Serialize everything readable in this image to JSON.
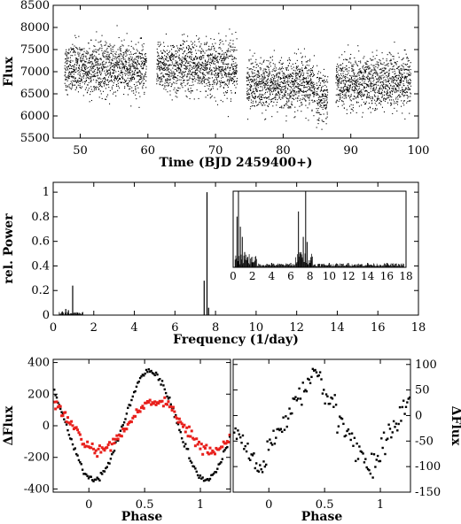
{
  "chart_data": [
    {
      "id": "lightcurve",
      "type": "scatter",
      "xlabel": "Time (BJD 2459400+)",
      "ylabel": "Flux",
      "xlim": [
        46,
        100
      ],
      "ylim": [
        5500,
        8500
      ],
      "xticks": [
        50,
        60,
        70,
        80,
        90,
        100
      ],
      "yticks": [
        5500,
        6000,
        6500,
        7000,
        7500,
        8000,
        8500
      ],
      "segments": [
        {
          "start": 47.7,
          "end": 58.8,
          "mean": 7080,
          "spread": 390
        },
        {
          "start": 58.8,
          "end": 59.8,
          "mean": 7080,
          "spread": 350
        },
        {
          "start": 61.3,
          "end": 73.2,
          "mean": 7100,
          "spread": 420
        },
        {
          "start": 74.6,
          "end": 84.7,
          "mean": 6700,
          "spread": 390
        },
        {
          "start": 84.9,
          "end": 86.6,
          "mean": 6450,
          "spread": 380
        },
        {
          "start": 87.8,
          "end": 98.9,
          "mean": 6760,
          "spread": 400
        }
      ],
      "grid": false
    },
    {
      "id": "periodogram",
      "type": "line",
      "xlabel": "Frequency (1/day)",
      "ylabel": "rel. Power",
      "xlim": [
        0,
        18
      ],
      "ylim": [
        0,
        1.08
      ],
      "xticks": [
        0,
        2,
        4,
        6,
        8,
        10,
        12,
        14,
        16,
        18
      ],
      "yticks": [
        0,
        0.2,
        0.4,
        0.6,
        0.8,
        1
      ],
      "peaks": [
        {
          "f": 0.45,
          "p": 0.03
        },
        {
          "f": 0.62,
          "p": 0.05
        },
        {
          "f": 0.75,
          "p": 0.04
        },
        {
          "f": 0.96,
          "p": 0.24
        },
        {
          "f": 1.2,
          "p": 0.02
        },
        {
          "f": 7.44,
          "p": 0.28
        },
        {
          "f": 7.58,
          "p": 1.0
        },
        {
          "f": 7.66,
          "p": 0.06
        }
      ],
      "inset": {
        "xlim": [
          0,
          18
        ],
        "ylim": [
          0,
          0.03
        ],
        "xticks": [
          0,
          2,
          4,
          6,
          8,
          10,
          12,
          14,
          16,
          18
        ],
        "peaks": [
          {
            "f": 0.4,
            "p": 0.02
          },
          {
            "f": 0.55,
            "p": 0.03
          },
          {
            "f": 0.75,
            "p": 0.016
          },
          {
            "f": 0.95,
            "p": 0.012
          },
          {
            "f": 1.2,
            "p": 0.006
          },
          {
            "f": 1.5,
            "p": 0.004
          },
          {
            "f": 2.1,
            "p": 0.002
          },
          {
            "f": 6.8,
            "p": 0.022
          },
          {
            "f": 7.05,
            "p": 0.006
          },
          {
            "f": 7.3,
            "p": 0.012
          },
          {
            "f": 7.55,
            "p": 0.03
          },
          {
            "f": 7.7,
            "p": 0.01
          },
          {
            "f": 8.1,
            "p": 0.004
          }
        ]
      },
      "grid": false
    },
    {
      "id": "phase-left",
      "type": "scatter",
      "xlabel": "Phase",
      "ylabel": "ΔFlux",
      "xlim": [
        -0.32,
        1.27
      ],
      "ylim": [
        -420,
        420
      ],
      "xticks": [
        0,
        0.5,
        1
      ],
      "yticks": [
        -400,
        -200,
        0,
        200,
        400
      ],
      "series": [
        {
          "color": "#000000",
          "amplitude": 340,
          "peak_phase": 0.55
        },
        {
          "color": "#e8201c",
          "amplitude": 160,
          "peak_phase": 0.6
        }
      ],
      "grid": false
    },
    {
      "id": "phase-right",
      "type": "scatter",
      "xlabel": "Phase",
      "ylabel": "ΔFlux",
      "xlim": [
        -0.32,
        1.27
      ],
      "ylim": [
        -150,
        110
      ],
      "xticks": [
        0,
        0.5,
        1
      ],
      "yticks": [
        -150,
        -100,
        -50,
        0,
        50,
        100
      ],
      "series": [
        {
          "color": "#000000",
          "amplitude": 100,
          "peak_phase": 0.4
        }
      ],
      "grid": false
    }
  ]
}
